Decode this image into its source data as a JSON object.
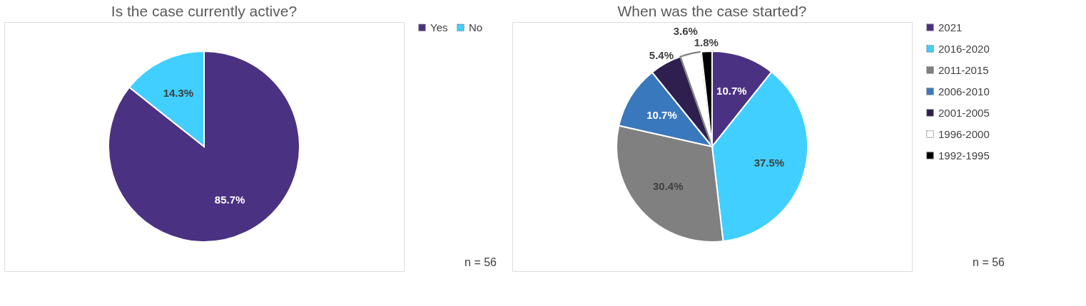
{
  "chart_data": [
    {
      "type": "pie",
      "title": "Is the case currently active?",
      "categories": [
        "Yes",
        "No"
      ],
      "values": [
        85.7,
        14.3
      ],
      "colors": [
        "#4b3182",
        "#40cfff"
      ],
      "value_labels": [
        "85.7%",
        "14.3%"
      ],
      "legend": "right",
      "annotations": [
        "n = 56"
      ]
    },
    {
      "type": "pie",
      "title": "When was the case started?",
      "categories": [
        "2021",
        "2016-2020",
        "2011-2015",
        "2006-2010",
        "2001-2005",
        "1996-2000",
        "1992-1995"
      ],
      "values": [
        10.7,
        37.5,
        30.4,
        10.7,
        5.4,
        3.6,
        1.8
      ],
      "colors": [
        "#4b3182",
        "#40cfff",
        "#808080",
        "#3a78bd",
        "#2e1f4f",
        "#ffffff",
        "#000000"
      ],
      "value_labels": [
        "10.7%",
        "37.5%",
        "30.4%",
        "10.7%",
        "5.4%",
        "3.6%",
        "1.8%"
      ],
      "legend": "right",
      "annotations": [
        "n = 56"
      ]
    }
  ]
}
